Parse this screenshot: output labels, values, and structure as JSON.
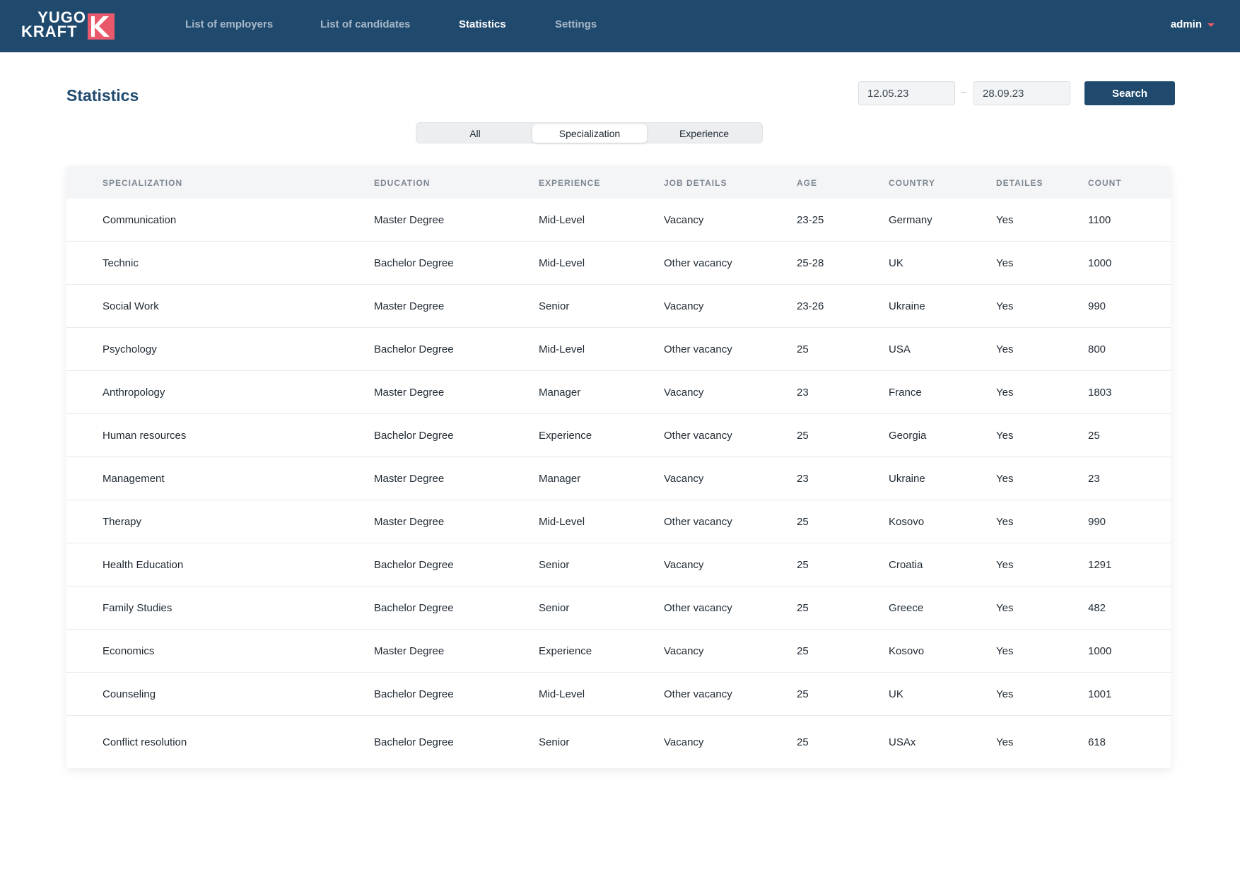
{
  "brand": {
    "logo_line1": "YUGO",
    "logo_line2": "KRAFT",
    "accent_color": "#e9596b",
    "nav_bg_color": "#1f4a6e"
  },
  "nav": {
    "items": [
      {
        "label": "List of employers"
      },
      {
        "label": "List of candidates"
      },
      {
        "label": "Statistics",
        "active": true
      },
      {
        "label": "Settings"
      }
    ],
    "user_label": "admin"
  },
  "page": {
    "title": "Statistics"
  },
  "filters": {
    "date_from": "12.05.23",
    "date_separator": "–",
    "date_to": "28.09.23",
    "search_label": "Search"
  },
  "tabs": [
    {
      "label": "All"
    },
    {
      "label": "Specialization",
      "active": true
    },
    {
      "label": "Experience"
    }
  ],
  "table": {
    "columns": [
      "SPECIALIZATION",
      "EDUCATION",
      "EXPERIENCE",
      "JOB DETAILS",
      "AGE",
      "COUNTRY",
      "DETAILES",
      "COUNT"
    ],
    "rows": [
      [
        "Communication",
        "Master Degree",
        "Mid-Level",
        "Vacancy",
        "23-25",
        "Germany",
        "Yes",
        "1100"
      ],
      [
        "Technic",
        "Bachelor Degree",
        "Mid-Level",
        "Other vacancy",
        "25-28",
        "UK",
        "Yes",
        "1000"
      ],
      [
        "Social Work",
        "Master Degree",
        "Senior",
        "Vacancy",
        "23-26",
        "Ukraine",
        "Yes",
        "990"
      ],
      [
        "Psychology",
        "Bachelor Degree",
        "Mid-Level",
        "Other vacancy",
        "25",
        "USA",
        "Yes",
        "800"
      ],
      [
        "Anthropology",
        "Master Degree",
        "Manager",
        "Vacancy",
        "23",
        "France",
        "Yes",
        "1803"
      ],
      [
        "Human resources",
        "Bachelor Degree",
        "Experience",
        "Other vacancy",
        "25",
        "Georgia",
        "Yes",
        "25"
      ],
      [
        "Management",
        "Master Degree",
        "Manager",
        "Vacancy",
        "23",
        "Ukraine",
        "Yes",
        "23"
      ],
      [
        "Therapy",
        "Master Degree",
        "Mid-Level",
        "Other vacancy",
        "25",
        "Kosovo",
        "Yes",
        "990"
      ],
      [
        "Health Education",
        "Bachelor Degree",
        "Senior",
        "Vacancy",
        "25",
        "Croatia",
        "Yes",
        "1291"
      ],
      [
        "Family Studies",
        "Bachelor Degree",
        "Senior",
        "Other vacancy",
        "25",
        "Greece",
        "Yes",
        "482"
      ],
      [
        "Economics",
        "Master Degree",
        "Experience",
        "Vacancy",
        "25",
        "Kosovo",
        "Yes",
        "1000"
      ],
      [
        "Counseling",
        "Bachelor Degree",
        "Mid-Level",
        "Other vacancy",
        "25",
        "UK",
        "Yes",
        "1001"
      ],
      [
        "Conflict resolution",
        "Bachelor Degree",
        "Senior",
        "Vacancy",
        "25",
        "USAx",
        "Yes",
        "618"
      ]
    ]
  }
}
